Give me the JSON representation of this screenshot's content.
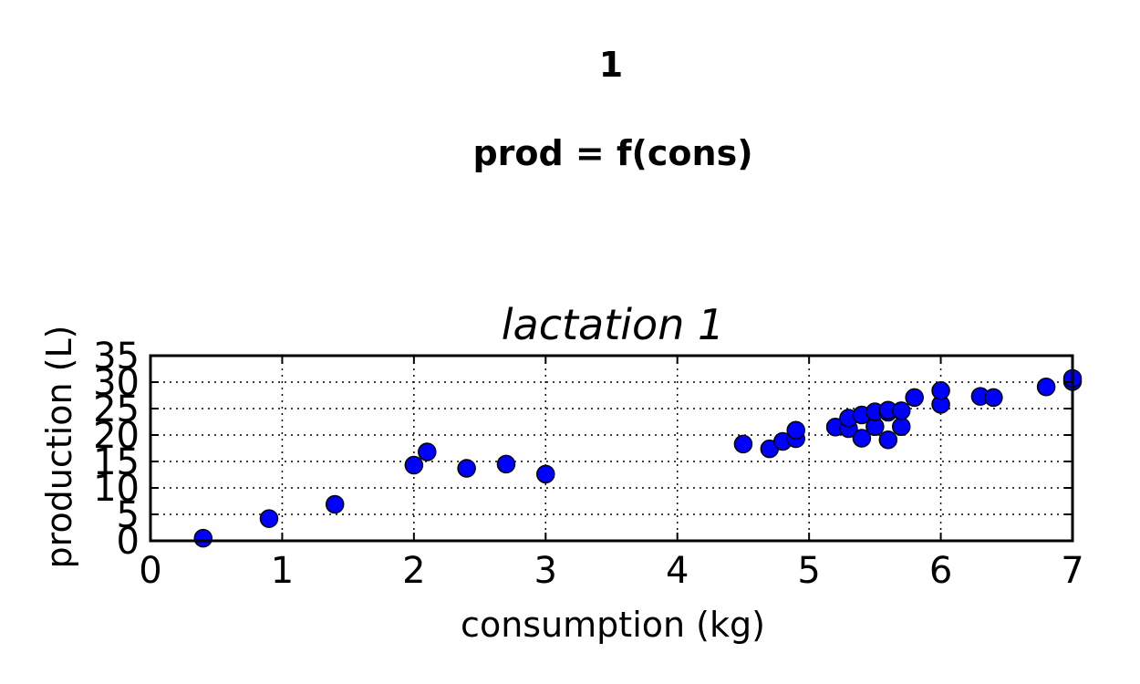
{
  "figure": {
    "suptitle_line1": "1",
    "suptitle_line2": "prod = f(cons)"
  },
  "chart_data": {
    "type": "scatter",
    "title": "lactation 1",
    "xlabel": "consumption (kg)",
    "ylabel": "production (L)",
    "xlim": [
      0,
      7
    ],
    "ylim": [
      0,
      35
    ],
    "xticks": [
      0,
      1,
      2,
      3,
      4,
      5,
      6,
      7
    ],
    "yticks": [
      0,
      5,
      10,
      15,
      20,
      25,
      30,
      35
    ],
    "grid": true,
    "grid_style": "dotted",
    "marker": "circle",
    "marker_color": "#0000ff",
    "marker_edge_color": "#000000",
    "series": [
      {
        "points": [
          [
            0.4,
            0.5
          ],
          [
            0.9,
            4.2
          ],
          [
            1.4,
            6.9
          ],
          [
            2.0,
            14.3
          ],
          [
            2.1,
            16.8
          ],
          [
            2.4,
            13.7
          ],
          [
            2.7,
            14.5
          ],
          [
            3.0,
            12.6
          ],
          [
            4.5,
            18.3
          ],
          [
            4.7,
            17.4
          ],
          [
            4.8,
            18.8
          ],
          [
            4.9,
            19.3
          ],
          [
            4.9,
            20.9
          ],
          [
            5.2,
            21.5
          ],
          [
            5.3,
            21.2
          ],
          [
            5.3,
            23.2
          ],
          [
            5.4,
            19.4
          ],
          [
            5.4,
            23.8
          ],
          [
            5.5,
            21.6
          ],
          [
            5.5,
            24.4
          ],
          [
            5.6,
            19.1
          ],
          [
            5.6,
            24.3
          ],
          [
            5.6,
            24.7
          ],
          [
            5.7,
            21.6
          ],
          [
            5.7,
            24.6
          ],
          [
            5.8,
            27.1
          ],
          [
            6.0,
            25.8
          ],
          [
            6.0,
            28.4
          ],
          [
            6.3,
            27.3
          ],
          [
            6.4,
            27.1
          ],
          [
            6.8,
            29.1
          ],
          [
            7.0,
            30.1
          ],
          [
            7.0,
            30.7
          ]
        ]
      }
    ]
  }
}
